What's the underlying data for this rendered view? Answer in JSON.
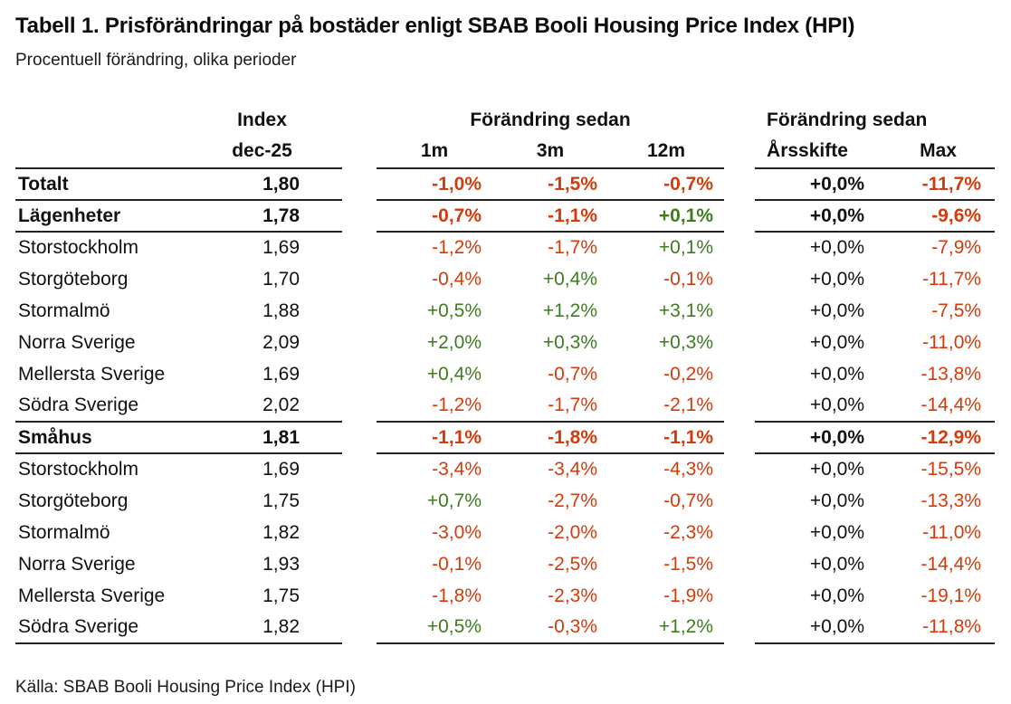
{
  "title": "Tabell 1. Prisförändringar på bostäder enligt SBAB Booli Housing Price Index (HPI)",
  "subtitle": "Procentuell förändring, olika perioder",
  "source": "Källa: SBAB Booli Housing Price Index (HPI)",
  "colors": {
    "negative": "#d33c0a",
    "positive": "#3e7c1e",
    "neutral": "#111111",
    "rule": "#232323"
  },
  "table": {
    "header": {
      "index_group": "Index",
      "change_group_1": "Förändring sedan",
      "change_group_2": "Förändring sedan",
      "col_index": "dec-25",
      "col_1m": "1m",
      "col_3m": "3m",
      "col_12m": "12m",
      "col_arsskifte": "Årsskifte",
      "col_max": "Max"
    },
    "rows": [
      {
        "label": "Totalt",
        "index": "1,80",
        "m1": "-1,0%",
        "m3": "-1,5%",
        "m12": "-0,7%",
        "ytd": "+0,0%",
        "max": "-11,7%",
        "bold": true,
        "rule_below": true
      },
      {
        "label": "Lägenheter",
        "index": "1,78",
        "m1": "-0,7%",
        "m3": "-1,1%",
        "m12": "+0,1%",
        "ytd": "+0,0%",
        "max": "-9,6%",
        "bold": true,
        "rule_below": true
      },
      {
        "label": "Storstockholm",
        "index": "1,69",
        "m1": "-1,2%",
        "m3": "-1,7%",
        "m12": "+0,1%",
        "ytd": "+0,0%",
        "max": "-7,9%",
        "bold": false,
        "rule_below": false
      },
      {
        "label": "Storgöteborg",
        "index": "1,70",
        "m1": "-0,4%",
        "m3": "+0,4%",
        "m12": "-0,1%",
        "ytd": "+0,0%",
        "max": "-11,7%",
        "bold": false,
        "rule_below": false
      },
      {
        "label": "Stormalmö",
        "index": "1,88",
        "m1": "+0,5%",
        "m3": "+1,2%",
        "m12": "+3,1%",
        "ytd": "+0,0%",
        "max": "-7,5%",
        "bold": false,
        "rule_below": false
      },
      {
        "label": "Norra Sverige",
        "index": "2,09",
        "m1": "+2,0%",
        "m3": "+0,3%",
        "m12": "+0,3%",
        "ytd": "+0,0%",
        "max": "-11,0%",
        "bold": false,
        "rule_below": false
      },
      {
        "label": "Mellersta Sverige",
        "index": "1,69",
        "m1": "+0,4%",
        "m3": "-0,7%",
        "m12": "-0,2%",
        "ytd": "+0,0%",
        "max": "-13,8%",
        "bold": false,
        "rule_below": false
      },
      {
        "label": "Södra Sverige",
        "index": "2,02",
        "m1": "-1,2%",
        "m3": "-1,7%",
        "m12": "-2,1%",
        "ytd": "+0,0%",
        "max": "-14,4%",
        "bold": false,
        "rule_below": true
      },
      {
        "label": "Småhus",
        "index": "1,81",
        "m1": "-1,1%",
        "m3": "-1,8%",
        "m12": "-1,1%",
        "ytd": "+0,0%",
        "max": "-12,9%",
        "bold": true,
        "rule_below": true
      },
      {
        "label": "Storstockholm",
        "index": "1,69",
        "m1": "-3,4%",
        "m3": "-3,4%",
        "m12": "-4,3%",
        "ytd": "+0,0%",
        "max": "-15,5%",
        "bold": false,
        "rule_below": false
      },
      {
        "label": "Storgöteborg",
        "index": "1,75",
        "m1": "+0,7%",
        "m3": "-2,7%",
        "m12": "-0,7%",
        "ytd": "+0,0%",
        "max": "-13,3%",
        "bold": false,
        "rule_below": false
      },
      {
        "label": "Stormalmö",
        "index": "1,82",
        "m1": "-3,0%",
        "m3": "-2,0%",
        "m12": "-2,3%",
        "ytd": "+0,0%",
        "max": "-11,0%",
        "bold": false,
        "rule_below": false
      },
      {
        "label": "Norra Sverige",
        "index": "1,93",
        "m1": "-0,1%",
        "m3": "-2,5%",
        "m12": "-1,5%",
        "ytd": "+0,0%",
        "max": "-14,4%",
        "bold": false,
        "rule_below": false
      },
      {
        "label": "Mellersta Sverige",
        "index": "1,75",
        "m1": "-1,8%",
        "m3": "-2,3%",
        "m12": "-1,9%",
        "ytd": "+0,0%",
        "max": "-19,1%",
        "bold": false,
        "rule_below": false
      },
      {
        "label": "Södra Sverige",
        "index": "1,82",
        "m1": "+0,5%",
        "m3": "-0,3%",
        "m12": "+1,2%",
        "ytd": "+0,0%",
        "max": "-11,8%",
        "bold": false,
        "rule_below": true
      }
    ]
  }
}
